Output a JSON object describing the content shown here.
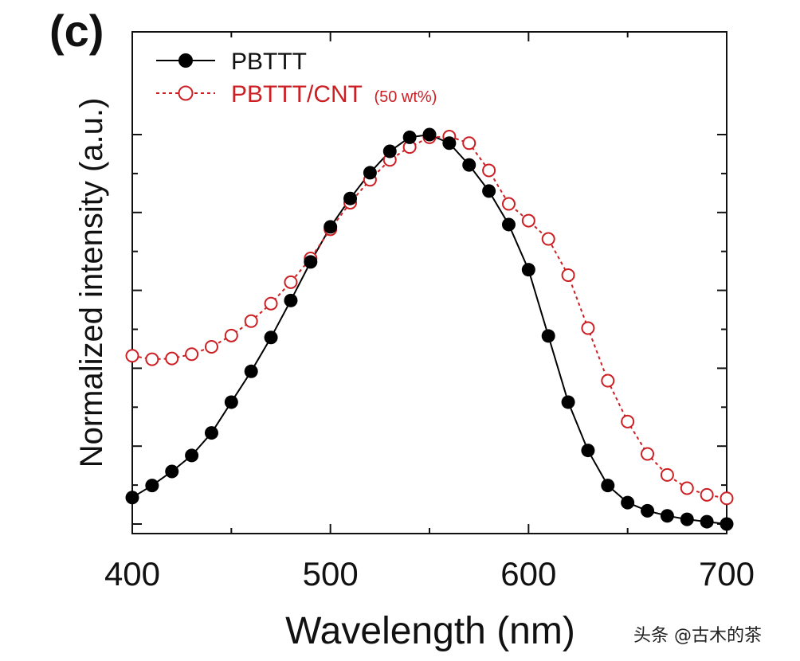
{
  "panel_label": "(c)",
  "watermark": "头条 @古木的茶",
  "colors": {
    "series1": "#000000",
    "series2": "#cc1f24",
    "axis": "#111111"
  },
  "chart_data": {
    "type": "line",
    "title": "",
    "xlabel": "Wavelength (nm)",
    "ylabel": "Normalized intensity (a.u.)",
    "xlim": [
      400,
      700
    ],
    "ylim": [
      0,
      1.05
    ],
    "xticks": [
      400,
      500,
      600,
      700
    ],
    "xtick_labels": [
      "400",
      "500",
      "600",
      "700"
    ],
    "grid": false,
    "legend_position": "top-left",
    "series": [
      {
        "name": "PBTTT",
        "name_suffix": "",
        "marker": "filled-circle",
        "line": "solid",
        "x": [
          400,
          410,
          420,
          430,
          440,
          450,
          460,
          470,
          480,
          490,
          500,
          510,
          520,
          530,
          540,
          550,
          560,
          570,
          580,
          590,
          600,
          610,
          620,
          630,
          640,
          650,
          660,
          670,
          680,
          690,
          700
        ],
        "y": [
          0.068,
          0.099,
          0.135,
          0.176,
          0.234,
          0.313,
          0.392,
          0.479,
          0.574,
          0.673,
          0.763,
          0.836,
          0.902,
          0.957,
          0.993,
          1.0,
          0.978,
          0.922,
          0.855,
          0.769,
          0.653,
          0.483,
          0.313,
          0.189,
          0.099,
          0.055,
          0.034,
          0.021,
          0.012,
          0.006,
          0.0
        ]
      },
      {
        "name": "PBTTT/CNT",
        "name_suffix": "(50 wt%)",
        "marker": "open-circle",
        "line": "dashed",
        "x": [
          400,
          410,
          420,
          430,
          440,
          450,
          460,
          470,
          480,
          490,
          500,
          510,
          520,
          530,
          540,
          550,
          560,
          570,
          580,
          590,
          600,
          610,
          620,
          630,
          640,
          650,
          660,
          670,
          680,
          690,
          700
        ],
        "y": [
          0.432,
          0.423,
          0.425,
          0.436,
          0.455,
          0.484,
          0.521,
          0.566,
          0.621,
          0.682,
          0.757,
          0.825,
          0.884,
          0.935,
          0.968,
          0.993,
          0.995,
          0.978,
          0.908,
          0.822,
          0.779,
          0.732,
          0.639,
          0.503,
          0.368,
          0.263,
          0.18,
          0.126,
          0.092,
          0.075,
          0.066
        ]
      }
    ]
  }
}
